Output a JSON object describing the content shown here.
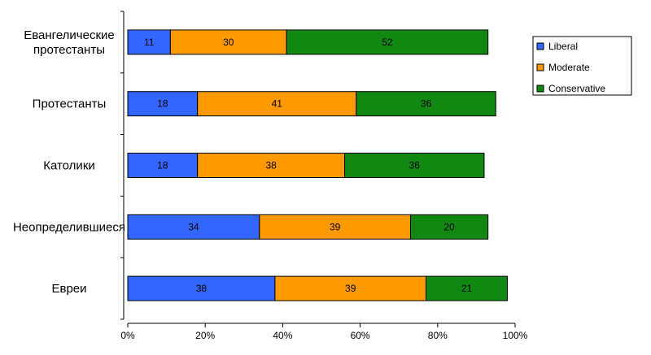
{
  "chart_data": {
    "type": "bar",
    "orientation": "horizontal",
    "stacked": true,
    "categories": [
      "Евангелические\nпротестанты",
      "Протестанты",
      "Католики",
      "Неопределившиеся",
      "Евреи"
    ],
    "series": [
      {
        "name": "Liberal",
        "color": "#3366ff",
        "values": [
          11,
          18,
          18,
          34,
          38
        ]
      },
      {
        "name": "Moderate",
        "color": "#ff9900",
        "values": [
          30,
          41,
          38,
          39,
          39
        ]
      },
      {
        "name": "Conservative",
        "color": "#118811",
        "values": [
          52,
          36,
          36,
          20,
          21
        ]
      }
    ],
    "xlim": [
      0,
      100
    ],
    "x_ticks": [
      "0%",
      "20%",
      "40%",
      "60%",
      "80%",
      "100%"
    ],
    "grid": false,
    "legend_position": "right"
  }
}
